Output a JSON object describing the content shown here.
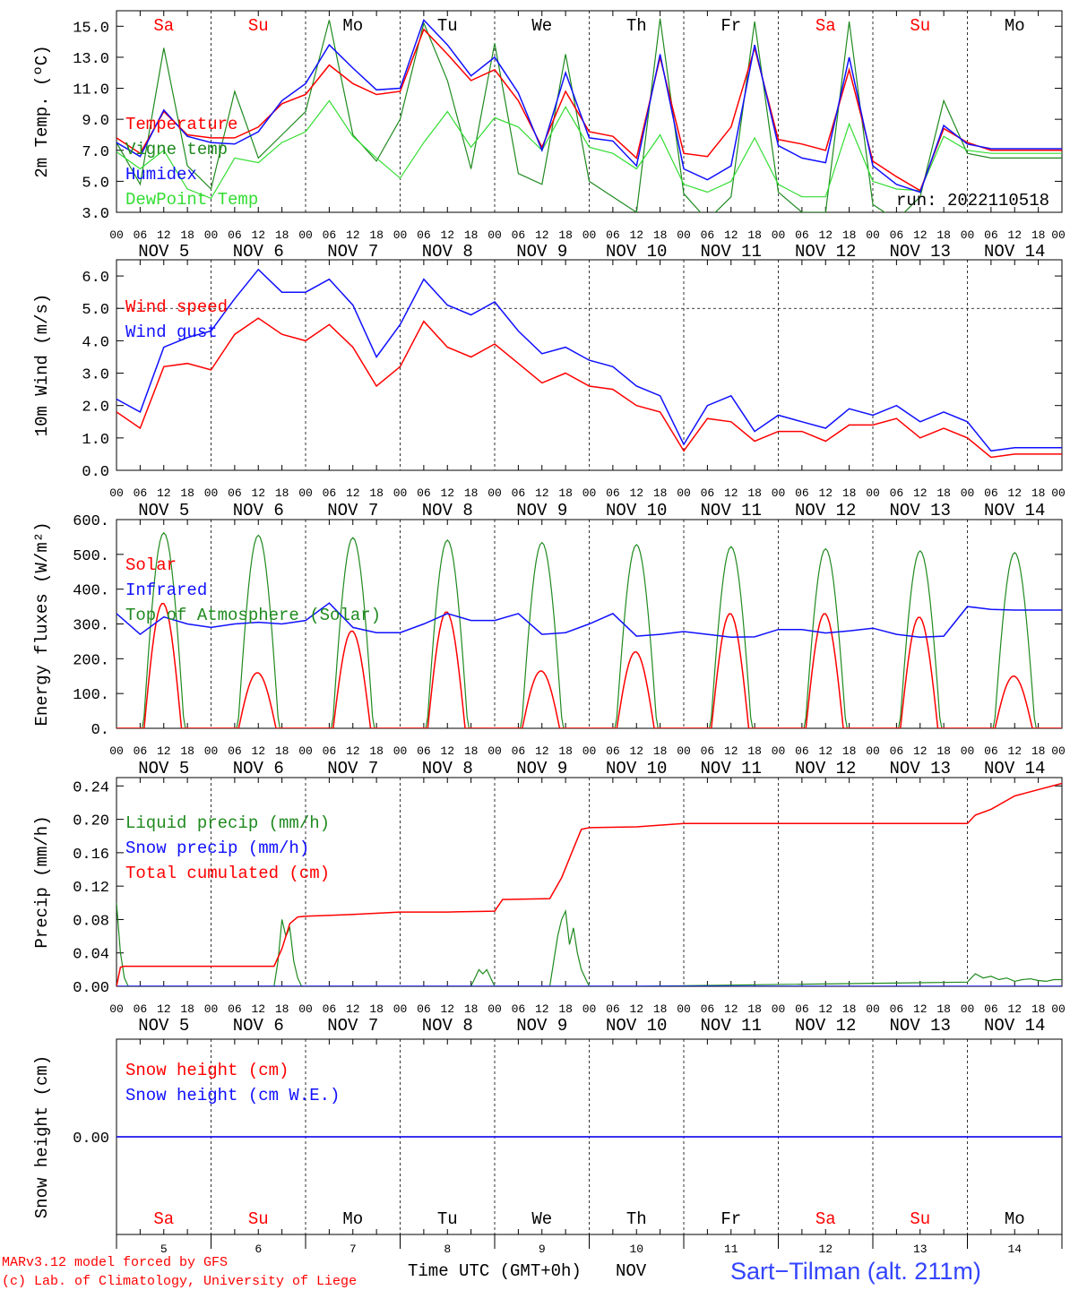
{
  "colors": {
    "red": "#ff0000",
    "green": "#1f8a1f",
    "blue": "#1010ff",
    "lightgreen": "#33dd33",
    "purple": "#7a2a8a",
    "black": "#000000"
  },
  "days": [
    {
      "name": "Sa",
      "weekend": true
    },
    {
      "name": "Su",
      "weekend": true
    },
    {
      "name": "Mo",
      "weekend": false
    },
    {
      "name": "Tu",
      "weekend": false
    },
    {
      "name": "We",
      "weekend": false
    },
    {
      "name": "Th",
      "weekend": false
    },
    {
      "name": "Fr",
      "weekend": false
    },
    {
      "name": "Sa",
      "weekend": true
    },
    {
      "name": "Su",
      "weekend": true
    },
    {
      "name": "Mo",
      "weekend": false
    }
  ],
  "date_labels": [
    "NOV  5",
    "NOV  6",
    "NOV  7",
    "NOV  8",
    "NOV  9",
    "NOV 10",
    "NOV 11",
    "NOV 12",
    "NOV 13",
    "NOV 14"
  ],
  "hour_labels": [
    "00",
    "06",
    "12",
    "18"
  ],
  "hour_label_end": "00",
  "bottom_day_numbers": [
    "5",
    "6",
    "7",
    "8",
    "9",
    "10",
    "11",
    "12",
    "13",
    "14"
  ],
  "footer": {
    "credit_line1": "MARv3.12 model forced by GFS",
    "credit_line2": "(c) Lab. of Climatology, University of Liege",
    "xaxis_title": "Time UTC (GMT+0h)",
    "xaxis_month": "NOV",
    "station": "Sart−Tilman (alt. 211m)"
  },
  "chart_data": [
    {
      "type": "line",
      "ylabel": "2m Temp. (ºC)",
      "ylim": [
        3.0,
        16.0
      ],
      "yticks": [
        "3.0",
        "5.0",
        "7.0",
        "9.0",
        "11.0",
        "13.0",
        "15.0"
      ],
      "ytick_values": [
        3,
        5,
        7,
        9,
        11,
        13,
        15
      ],
      "annotation": "run: 2022110518",
      "x_unit": "hours since Nov 5 00 UTC",
      "series": [
        {
          "name": "Temperature",
          "color": "red",
          "x": [
            0,
            6,
            12,
            18,
            24,
            30,
            36,
            42,
            48,
            54,
            60,
            66,
            72,
            78,
            84,
            90,
            96,
            102,
            108,
            114,
            120,
            126,
            132,
            138,
            144,
            150,
            156,
            162,
            168,
            174,
            180,
            186,
            192,
            198,
            204,
            210,
            216,
            222,
            228,
            234,
            240
          ],
          "y": [
            7.8,
            6.8,
            9.5,
            8.0,
            7.8,
            7.8,
            8.5,
            10.0,
            10.6,
            12.5,
            11.3,
            10.6,
            10.8,
            14.8,
            13.2,
            11.5,
            12.2,
            10.2,
            7.2,
            10.8,
            8.2,
            7.9,
            6.5,
            13.0,
            6.8,
            6.6,
            8.5,
            13.6,
            7.7,
            7.4,
            7.0,
            12.2,
            6.3,
            5.3,
            4.4,
            8.4,
            7.5,
            7.0,
            7.0,
            7.0,
            7.0
          ]
        },
        {
          "name": "Vigne temp",
          "color": "green",
          "x": [
            0,
            6,
            12,
            18,
            24,
            30,
            36,
            42,
            48,
            54,
            60,
            66,
            72,
            78,
            84,
            90,
            96,
            102,
            108,
            114,
            120,
            126,
            132,
            138,
            144,
            150,
            156,
            162,
            168,
            174,
            180,
            186,
            192,
            198,
            204,
            210,
            216,
            222,
            228,
            234,
            240
          ],
          "y": [
            7.5,
            4.8,
            13.6,
            6.0,
            4.5,
            10.8,
            6.5,
            8.0,
            9.5,
            15.4,
            8.0,
            6.3,
            9.0,
            15.2,
            11.5,
            5.8,
            13.9,
            5.5,
            4.8,
            13.2,
            5.0,
            4.0,
            3.0,
            15.5,
            4.2,
            2.5,
            4.0,
            15.3,
            4.3,
            3.0,
            3.0,
            15.3,
            3.5,
            2.5,
            4.0,
            10.2,
            6.8,
            6.5,
            6.5,
            6.5,
            6.5
          ]
        },
        {
          "name": "Humidex",
          "color": "blue",
          "x": [
            0,
            6,
            12,
            18,
            24,
            30,
            36,
            42,
            48,
            54,
            60,
            66,
            72,
            78,
            84,
            90,
            96,
            102,
            108,
            114,
            120,
            126,
            132,
            138,
            144,
            150,
            156,
            162,
            168,
            174,
            180,
            186,
            192,
            198,
            204,
            210,
            216,
            222,
            228,
            234,
            240
          ],
          "y": [
            7.5,
            6.6,
            9.6,
            7.9,
            7.5,
            7.4,
            8.2,
            10.2,
            11.3,
            13.8,
            12.3,
            10.9,
            11.0,
            15.4,
            13.8,
            11.8,
            13.0,
            10.7,
            7.0,
            12.0,
            7.8,
            7.6,
            6.0,
            13.2,
            5.8,
            5.1,
            6.0,
            13.8,
            7.3,
            6.5,
            6.2,
            13.0,
            6.0,
            4.8,
            4.3,
            8.6,
            7.4,
            7.1,
            7.1,
            7.1,
            7.1
          ]
        },
        {
          "name": "DewPoint Temp",
          "color": "lightgreen",
          "x": [
            0,
            6,
            12,
            18,
            24,
            30,
            36,
            42,
            48,
            54,
            60,
            66,
            72,
            78,
            84,
            90,
            96,
            102,
            108,
            114,
            120,
            126,
            132,
            138,
            144,
            150,
            156,
            162,
            168,
            174,
            180,
            186,
            192,
            198,
            204,
            210,
            216,
            222,
            228,
            234,
            240
          ],
          "y": [
            6.9,
            5.8,
            7.0,
            4.5,
            3.9,
            6.5,
            6.2,
            7.5,
            8.2,
            10.2,
            7.9,
            6.5,
            5.2,
            7.5,
            9.5,
            7.2,
            9.1,
            8.5,
            7.0,
            9.8,
            7.2,
            6.8,
            5.8,
            8.0,
            4.8,
            4.3,
            5.0,
            7.8,
            4.8,
            4.0,
            4.0,
            8.7,
            5.0,
            4.5,
            4.4,
            7.9,
            7.0,
            6.8,
            6.8,
            6.8,
            6.8
          ]
        }
      ]
    },
    {
      "type": "line",
      "ylabel": "10m Wind (m/s)",
      "ylim": [
        0.0,
        6.5
      ],
      "yticks": [
        "0.0",
        "1.0",
        "2.0",
        "3.0",
        "4.0",
        "5.0",
        "6.0"
      ],
      "ytick_values": [
        0,
        1,
        2,
        3,
        4,
        5,
        6
      ],
      "ref_line": 5.0,
      "x_unit": "hours since Nov 5 00 UTC",
      "series": [
        {
          "name": "Wind speed",
          "color": "red",
          "x": [
            0,
            6,
            12,
            18,
            24,
            30,
            36,
            42,
            48,
            54,
            60,
            66,
            72,
            78,
            84,
            90,
            96,
            102,
            108,
            114,
            120,
            126,
            132,
            138,
            144,
            150,
            156,
            162,
            168,
            174,
            180,
            186,
            192,
            198,
            204,
            210,
            216,
            222,
            228,
            234,
            240
          ],
          "y": [
            1.8,
            1.3,
            3.2,
            3.3,
            3.1,
            4.2,
            4.7,
            4.2,
            4.0,
            4.5,
            3.8,
            2.6,
            3.2,
            4.6,
            3.8,
            3.5,
            3.9,
            3.3,
            2.7,
            3.0,
            2.6,
            2.5,
            2.0,
            1.8,
            0.6,
            1.6,
            1.5,
            0.9,
            1.2,
            1.2,
            0.9,
            1.4,
            1.4,
            1.6,
            1.0,
            1.3,
            1.0,
            0.4,
            0.5,
            0.5,
            0.5
          ]
        },
        {
          "name": "Wind gust",
          "color": "blue",
          "x": [
            0,
            6,
            12,
            18,
            24,
            30,
            36,
            42,
            48,
            54,
            60,
            66,
            72,
            78,
            84,
            90,
            96,
            102,
            108,
            114,
            120,
            126,
            132,
            138,
            144,
            150,
            156,
            162,
            168,
            174,
            180,
            186,
            192,
            198,
            204,
            210,
            216,
            222,
            228,
            234,
            240
          ],
          "y": [
            2.2,
            1.8,
            3.8,
            4.1,
            4.3,
            5.3,
            6.2,
            5.5,
            5.5,
            5.9,
            5.1,
            3.5,
            4.5,
            5.9,
            5.1,
            4.8,
            5.2,
            4.3,
            3.6,
            3.8,
            3.4,
            3.2,
            2.6,
            2.3,
            0.8,
            2.0,
            2.3,
            1.2,
            1.7,
            1.5,
            1.3,
            1.9,
            1.7,
            2.0,
            1.5,
            1.8,
            1.5,
            0.6,
            0.7,
            0.7,
            0.7
          ]
        }
      ]
    },
    {
      "type": "line",
      "ylabel": "Energy fluxes (W/m²)",
      "ylim": [
        0,
        600
      ],
      "yticks": [
        "0.",
        "100.",
        "200.",
        "300.",
        "400.",
        "500.",
        "600."
      ],
      "ytick_values": [
        0,
        100,
        200,
        300,
        400,
        500,
        600
      ],
      "x_unit": "hours since Nov 5 00 UTC",
      "series": [
        {
          "name": "Solar",
          "color": "red",
          "peaks": [
            360,
            160,
            280,
            335,
            165,
            220,
            330,
            330,
            320,
            150
          ],
          "sunrise_offset_h": 7,
          "sunset_offset_h": 16.5
        },
        {
          "name": "Infrared",
          "color": "blue",
          "x": [
            0,
            6,
            12,
            18,
            24,
            30,
            36,
            42,
            48,
            54,
            60,
            66,
            72,
            78,
            84,
            90,
            96,
            102,
            108,
            114,
            120,
            126,
            132,
            138,
            144,
            150,
            156,
            162,
            168,
            174,
            180,
            186,
            192,
            198,
            204,
            210,
            216,
            222,
            228,
            234,
            240
          ],
          "y": [
            330,
            270,
            320,
            300,
            290,
            300,
            305,
            300,
            310,
            360,
            290,
            275,
            275,
            300,
            330,
            310,
            310,
            330,
            270,
            275,
            300,
            330,
            265,
            270,
            278,
            270,
            262,
            263,
            284,
            284,
            274,
            280,
            288,
            270,
            262,
            265,
            350,
            342,
            340,
            340,
            340
          ]
        },
        {
          "name": "Top of Atmosphere (Solar)",
          "color": "green",
          "peaks": [
            562,
            555,
            548,
            541,
            534,
            528,
            522,
            516,
            510,
            505
          ],
          "sunrise_offset_h": 6.8,
          "sunset_offset_h": 17.2
        }
      ]
    },
    {
      "type": "line",
      "ylabel": "Precip (mm/h)",
      "ylim": [
        0,
        0.25
      ],
      "yticks": [
        "0.00",
        "0.04",
        "0.08",
        "0.12",
        "0.16",
        "0.20",
        "0.24"
      ],
      "ytick_values": [
        0,
        0.04,
        0.08,
        0.12,
        0.16,
        0.2,
        0.24
      ],
      "x_unit": "hours since Nov 5 00 UTC",
      "series": [
        {
          "name": "Liquid precip (mm/h)",
          "color": "green",
          "x": [
            0,
            1,
            2,
            3,
            4,
            40,
            41,
            42,
            43,
            44,
            45,
            46,
            47,
            48,
            90,
            91,
            92,
            93,
            94,
            95,
            96,
            110,
            111,
            112,
            113,
            114,
            115,
            116,
            117,
            118,
            119,
            120,
            121,
            132,
            216,
            218,
            220,
            222,
            224,
            226,
            228,
            230,
            232,
            234,
            236,
            238,
            240
          ],
          "y": [
            0.1,
            0.04,
            0.01,
            0,
            0,
            0,
            0.03,
            0.08,
            0.06,
            0.07,
            0.03,
            0.01,
            0,
            0,
            0,
            0.01,
            0.02,
            0.015,
            0.02,
            0.01,
            0,
            0,
            0.03,
            0.06,
            0.08,
            0.09,
            0.05,
            0.07,
            0.04,
            0.02,
            0.01,
            0,
            0,
            0,
            0.005,
            0.015,
            0.01,
            0.012,
            0.008,
            0.01,
            0.006,
            0.008,
            0.009,
            0.007,
            0.006,
            0.008,
            0.008
          ]
        },
        {
          "name": "Snow precip (mm/h)",
          "color": "blue",
          "x": [
            0,
            240
          ],
          "y": [
            0,
            0
          ]
        },
        {
          "name": "Total cumulated (cm)",
          "color": "red",
          "x": [
            0,
            1,
            2,
            40,
            42,
            44,
            46,
            48,
            60,
            72,
            84,
            96,
            98,
            110,
            113,
            116,
            118,
            120,
            132,
            144,
            168,
            192,
            216,
            218,
            222,
            228,
            240
          ],
          "y": [
            0,
            0.023,
            0.024,
            0.024,
            0.045,
            0.075,
            0.083,
            0.084,
            0.086,
            0.089,
            0.089,
            0.09,
            0.104,
            0.105,
            0.13,
            0.165,
            0.188,
            0.19,
            0.191,
            0.195,
            0.195,
            0.195,
            0.195,
            0.205,
            0.212,
            0.228,
            0.243
          ]
        }
      ]
    },
    {
      "type": "line",
      "ylabel": "Snow height (cm)",
      "ylim": [
        -1,
        1
      ],
      "yticks": [
        "0.00"
      ],
      "ytick_values": [
        0
      ],
      "x_unit": "hours since Nov 5 00 UTC",
      "series": [
        {
          "name": "Snow height (cm)",
          "color": "red",
          "x": [
            0,
            240
          ],
          "y": [
            0,
            0
          ]
        },
        {
          "name": "Snow height (cm W.E.)",
          "color": "blue",
          "x": [
            0,
            240
          ],
          "y": [
            0,
            0
          ]
        }
      ]
    }
  ]
}
